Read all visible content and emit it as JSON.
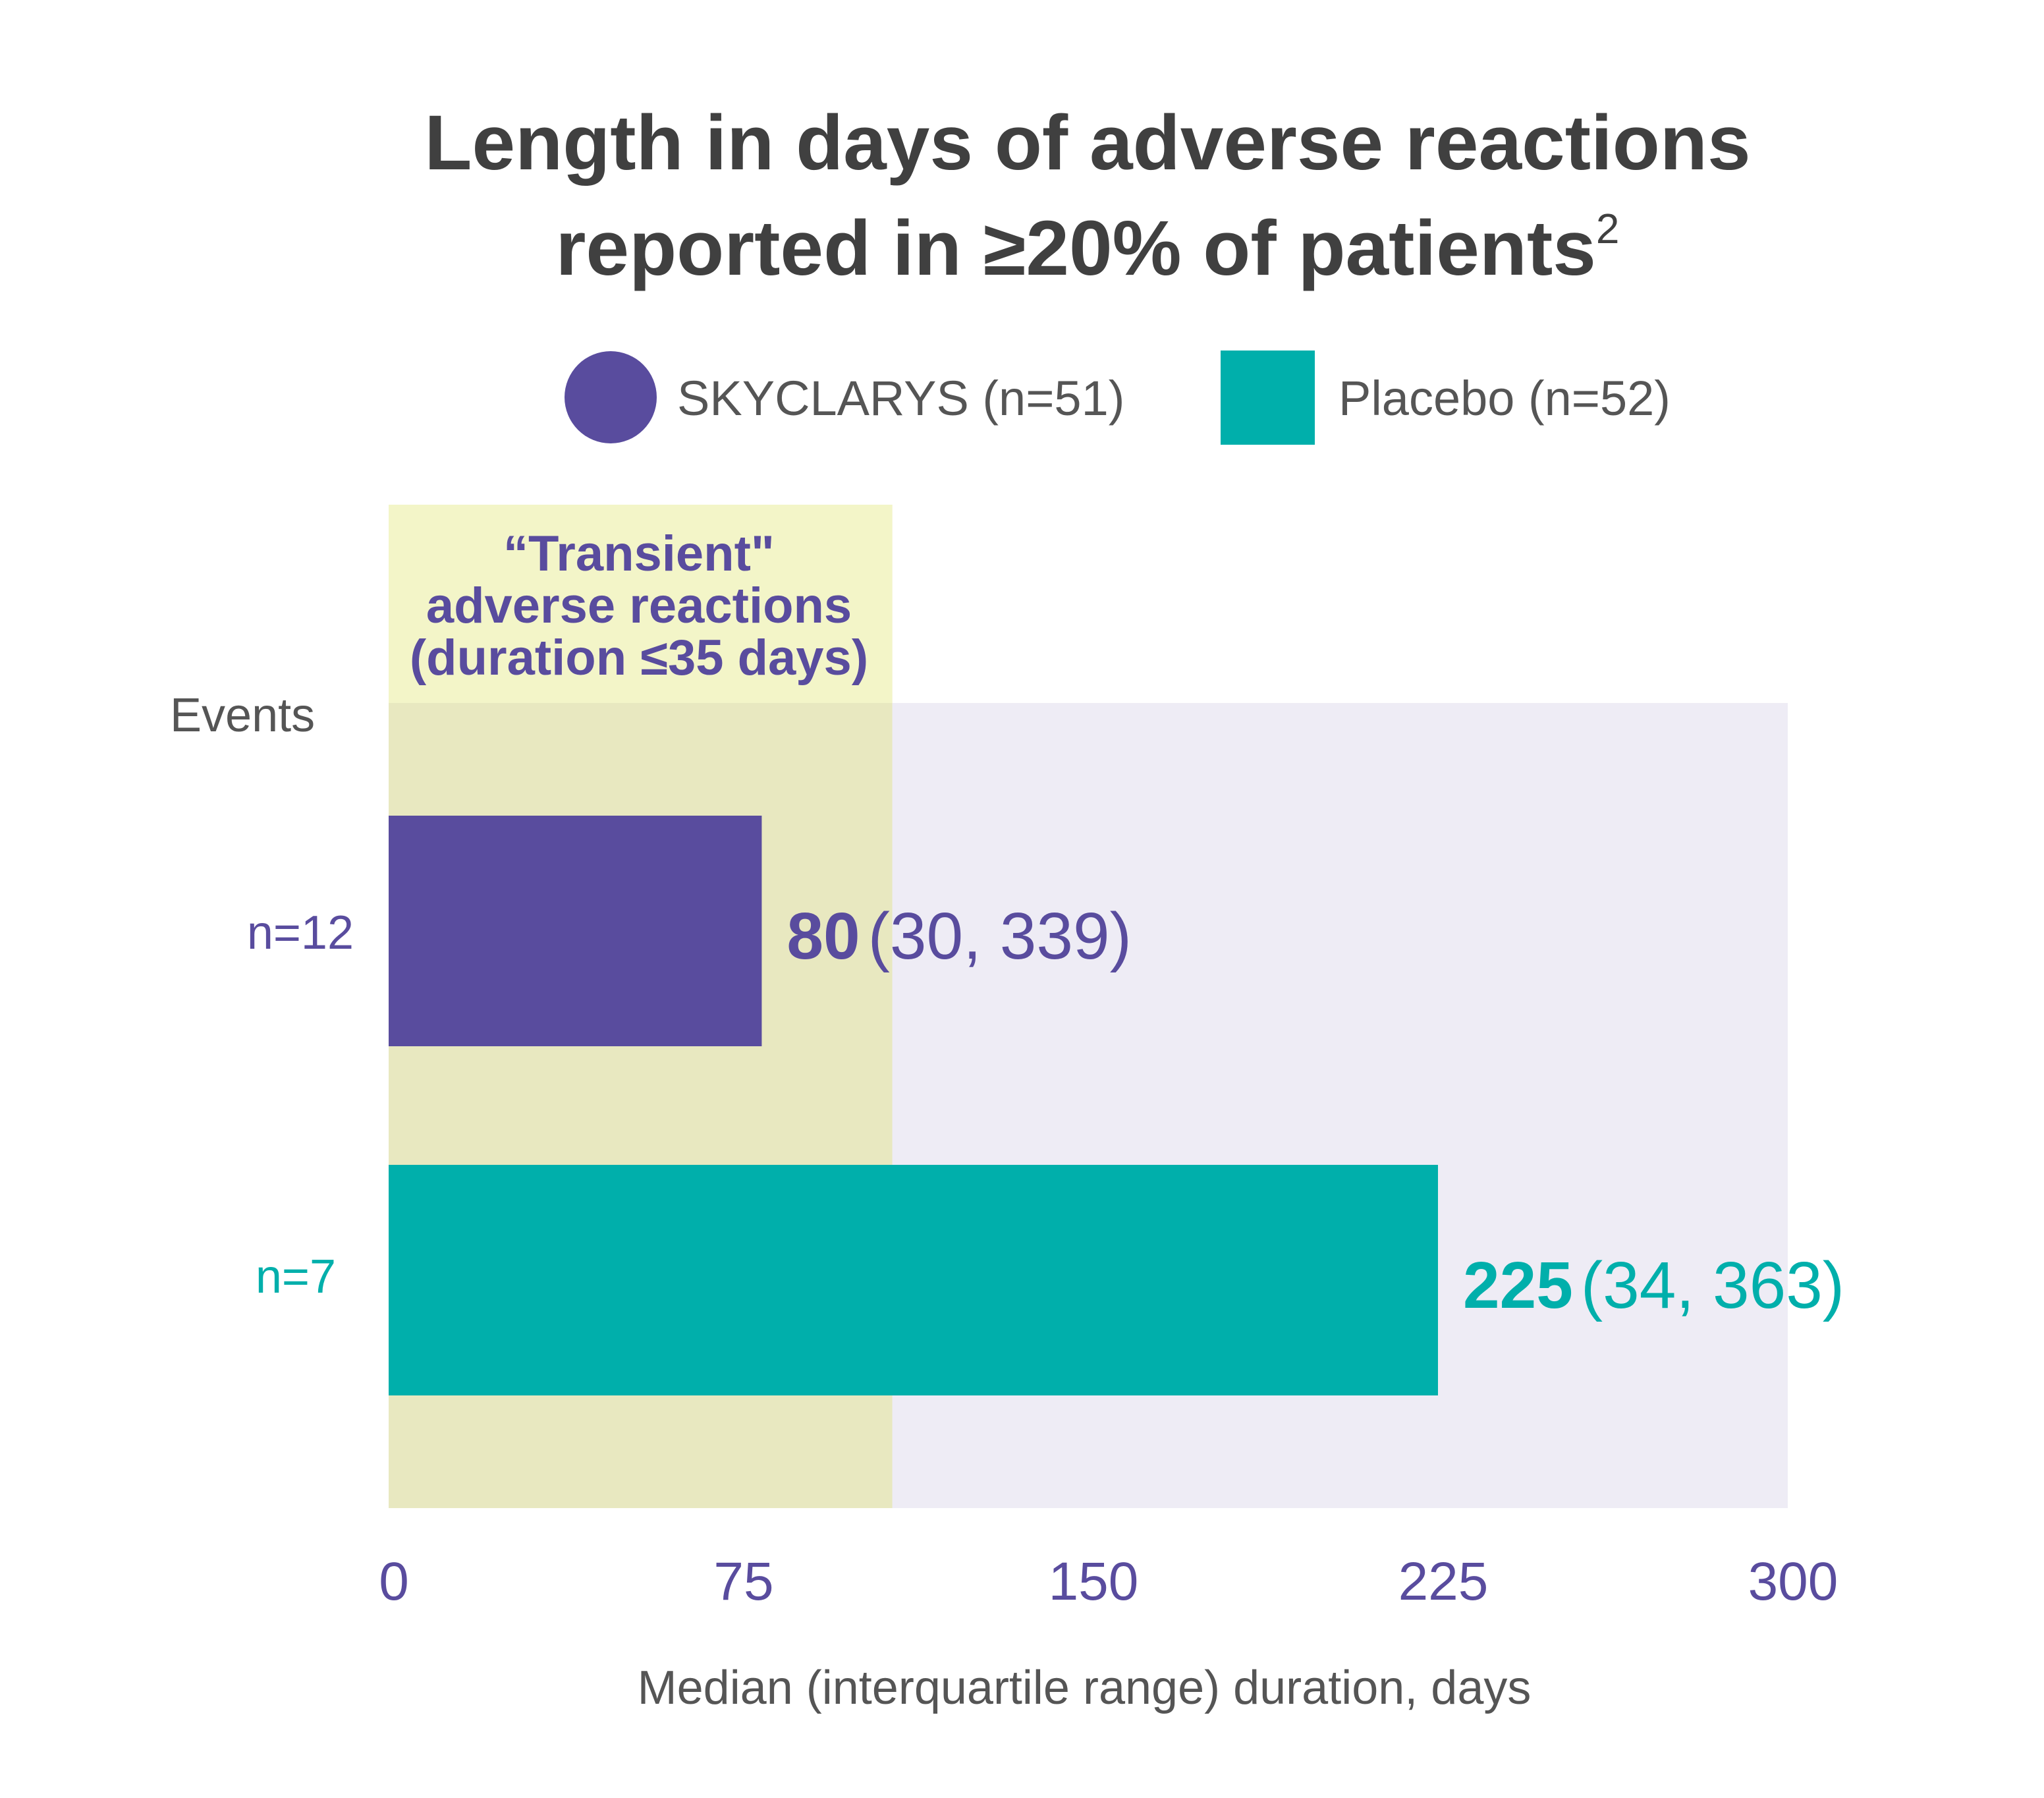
{
  "chart_data": {
    "type": "bar",
    "orientation": "horizontal",
    "title_line1": "Length in days of adverse reactions",
    "title_line2": "reported in ≥20% of patients",
    "title_superscript": "2",
    "legend_position": "top-center",
    "series": [
      {
        "name": "SKYCLARYS (n=51)",
        "color": "#594c9e",
        "events_label": "n=12",
        "median": 80,
        "median_label": "80",
        "iqr": [
          30,
          339
        ],
        "iqr_label": "(30, 339)"
      },
      {
        "name": "Placebo (n=52)",
        "color": "#00afab",
        "events_label": "n=7",
        "median": 225,
        "median_label": "225",
        "iqr": [
          34,
          363
        ],
        "iqr_label": "(34, 363)"
      }
    ],
    "events_axis_label": "Events",
    "xlabel": "Median (interquartile range) duration, days",
    "xlim": [
      0,
      300
    ],
    "xticks": [
      0,
      75,
      150,
      225,
      300
    ],
    "xtick_labels": [
      "0",
      "75",
      "150",
      "225",
      "300"
    ],
    "shaded_region": {
      "range": [
        0,
        108
      ],
      "label_lines": [
        "“Transient\"",
        "adverse reactions",
        "(duration ≤35 days)"
      ],
      "color": "#e8e8c0"
    },
    "plot_background_color": "#eeecf5",
    "axis_text_color": "#594c9e",
    "text_color": "#4a4a4a"
  }
}
